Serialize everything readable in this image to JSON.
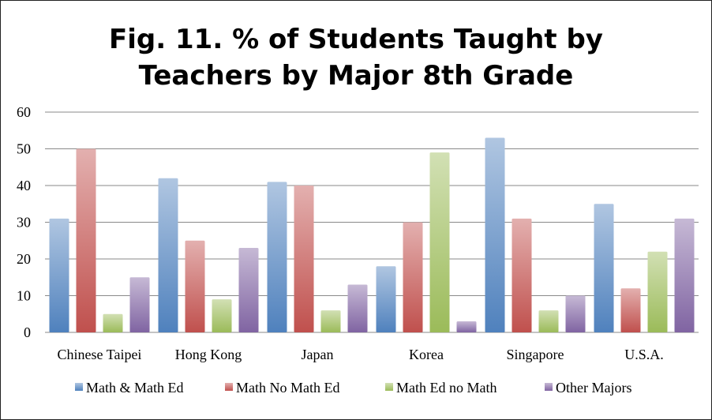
{
  "chart_data": {
    "type": "bar",
    "title_line1": "Fig. 11. % of Students Taught by",
    "title_line2": "Teachers by Major 8th Grade",
    "xlabel": "",
    "ylabel": "",
    "ylim": [
      0,
      60
    ],
    "yticks": [
      "0",
      "10",
      "20",
      "30",
      "40",
      "50",
      "60"
    ],
    "grid": true,
    "legend_position": "bottom",
    "categories": [
      "Chinese Taipei",
      "Hong Kong",
      "Japan",
      "Korea",
      "Singapore",
      "U.S.A."
    ],
    "series": [
      {
        "name": "Math & Math Ed",
        "color": "#4f81bd",
        "values": [
          31,
          42,
          41,
          18,
          53,
          35
        ]
      },
      {
        "name": "Math No Math Ed",
        "color": "#c0504d",
        "values": [
          50,
          25,
          40,
          30,
          31,
          12
        ]
      },
      {
        "name": "Math Ed no Math",
        "color": "#9bbb59",
        "values": [
          5,
          9,
          6,
          49,
          6,
          22
        ]
      },
      {
        "name": "Other Majors",
        "color": "#8064a2",
        "values": [
          15,
          23,
          13,
          3,
          10,
          31
        ]
      }
    ]
  }
}
